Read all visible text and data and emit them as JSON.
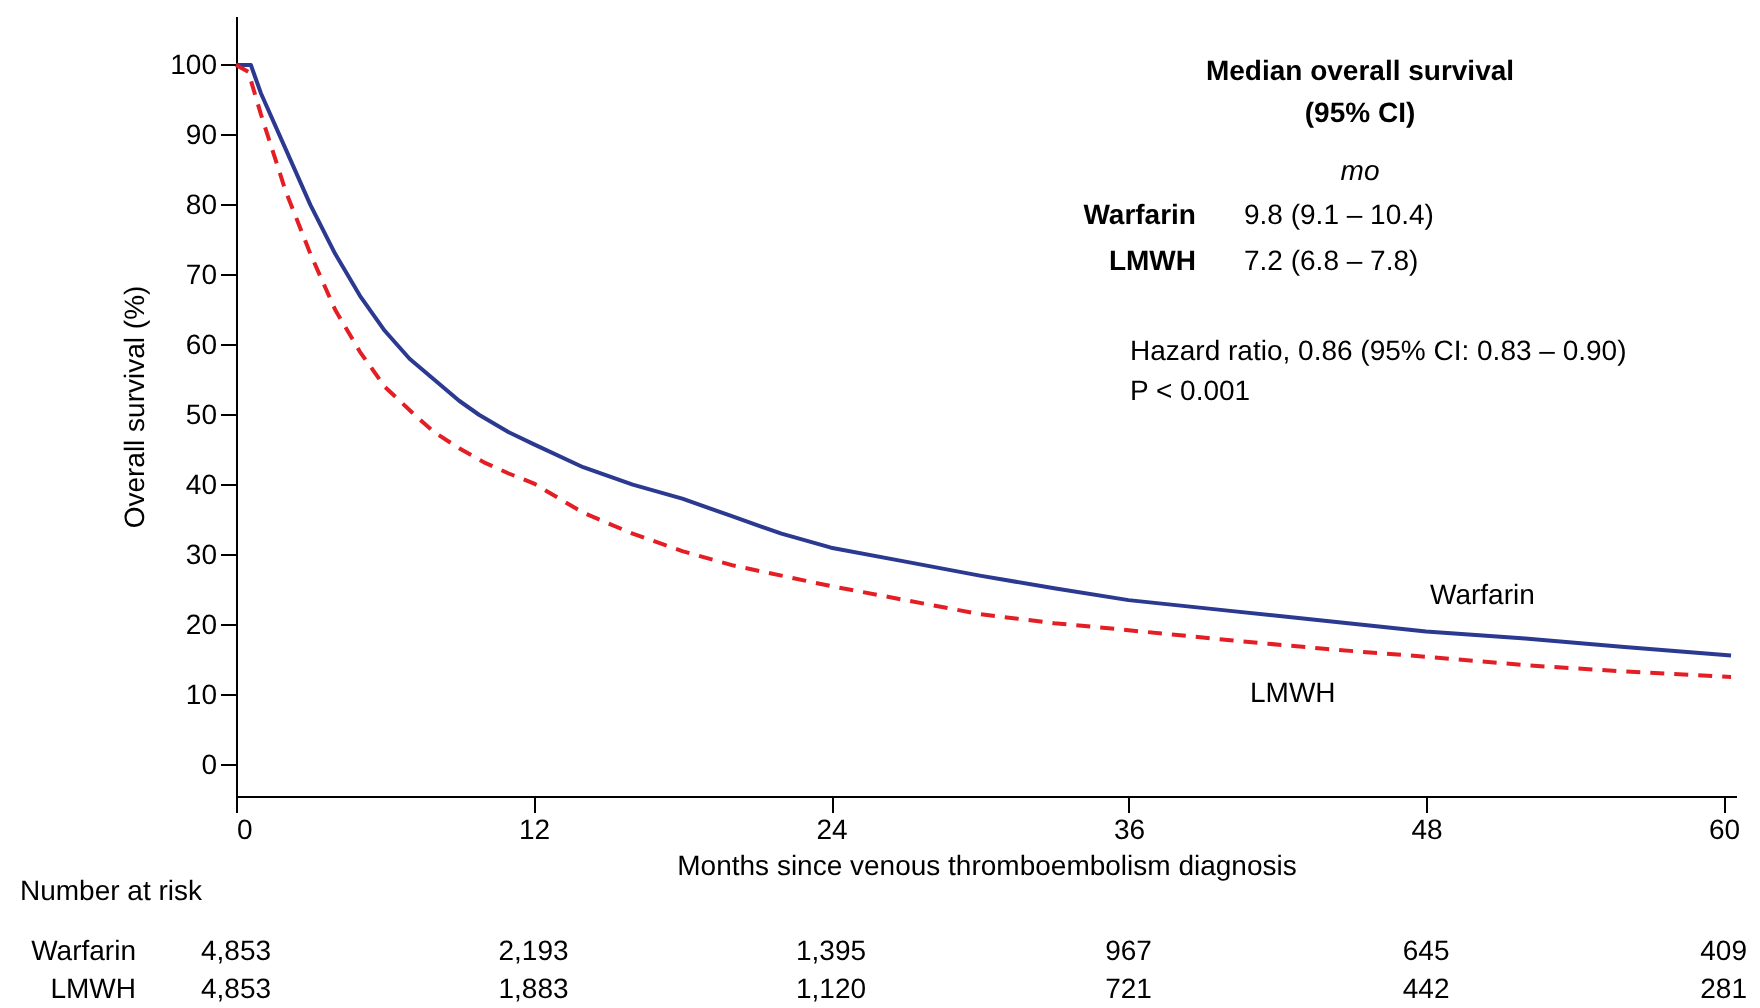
{
  "chart_data": {
    "type": "line",
    "xlabel": "Months since venous thromboembolism diagnosis",
    "ylabel": "Overall survival (%)",
    "xlim": [
      0,
      60.5
    ],
    "xticks": [
      0,
      12,
      24,
      36,
      48,
      60
    ],
    "ylim": [
      -4.5,
      107
    ],
    "yticks": [
      0,
      10,
      20,
      30,
      40,
      50,
      60,
      70,
      80,
      90,
      100
    ],
    "grid": false,
    "legend": false,
    "marker": "none",
    "series": [
      {
        "name": "Warfarin",
        "color": "#2b3990",
        "line_style": "solid",
        "x": [
          0,
          0.6,
          1,
          2,
          3,
          4,
          5,
          6,
          7,
          8,
          9,
          9.8,
          11,
          12,
          14,
          16,
          18,
          20,
          22,
          24,
          27,
          30,
          33,
          36,
          40,
          44,
          48,
          52,
          56,
          60.3
        ],
        "values": [
          100,
          100,
          96,
          88,
          80,
          73,
          67,
          62,
          58,
          55,
          52,
          50,
          47.5,
          45.8,
          42.5,
          40,
          38,
          35.5,
          33,
          31,
          29,
          27,
          25.2,
          23.5,
          22,
          20.5,
          19,
          18,
          16.8,
          15.6
        ]
      },
      {
        "name": "LMWH",
        "color": "#e31e24",
        "line_style": "dashed",
        "x": [
          0,
          0.5,
          1,
          2,
          3,
          4,
          5,
          6,
          7.2,
          8,
          9,
          10,
          11,
          12,
          14,
          16,
          18,
          20,
          22,
          24,
          27,
          30,
          33,
          36,
          40,
          44,
          48,
          52,
          56,
          60.3
        ],
        "values": [
          100,
          99,
          93,
          82,
          73,
          65,
          59,
          54,
          50,
          47.5,
          45.2,
          43.2,
          41.6,
          40.2,
          36,
          33,
          30.5,
          28.5,
          27,
          25.5,
          23.5,
          21.5,
          20.2,
          19.2,
          17.8,
          16.5,
          15.4,
          14.2,
          13.3,
          12.5
        ]
      }
    ],
    "annotations": [
      "Median overall survival",
      "(95% CI)",
      "mo",
      "Warfarin",
      "9.8 (9.1 – 10.4)",
      "LMWH",
      "7.2 (6.8 – 7.8)",
      "Hazard ratio, 0.86 (95% CI: 0.83 – 0.90)",
      "P < 0.001",
      "Number at risk",
      "Warfarin",
      "4,853",
      "2,193",
      "1,395",
      "967",
      "645",
      "409",
      "LMWH",
      "4,853",
      "1,883",
      "1,120",
      "721",
      "442",
      "281"
    ]
  }
}
